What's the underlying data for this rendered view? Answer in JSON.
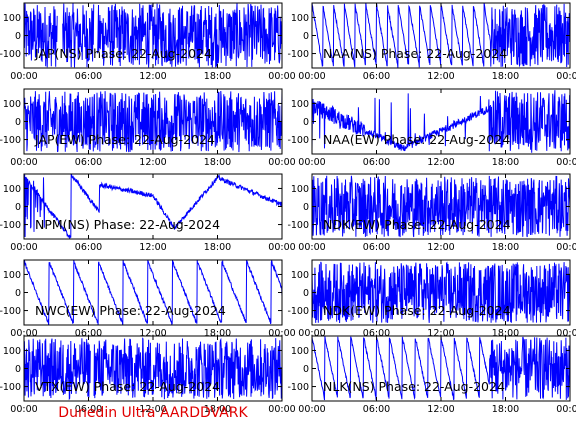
{
  "footer": "Dunedin Ultra AARDDVARK",
  "colors": {
    "trace": "#0000ff",
    "axis": "#000000",
    "background": "#ffffff",
    "footer": "#e00000"
  },
  "chart_data": [
    {
      "type": "line",
      "title": "JAP(NS) Phase: 22-Aug-2024",
      "xticks": [
        "00:00",
        "06:00",
        "12:00",
        "18:00",
        "00:00"
      ],
      "xlim": [
        0,
        24
      ],
      "ylim": [
        -180,
        180
      ],
      "yticks": [
        100,
        0,
        -100
      ],
      "trace": {
        "mode": "dense",
        "segments": [
          [
            0,
            3.1
          ],
          [
            3.6,
            6.5
          ],
          [
            6.8,
            24
          ]
        ]
      }
    },
    {
      "type": "line",
      "title": "NAA(NS) Phase: 22-Aug-2024",
      "xticks": [
        "00:00",
        "06:00",
        "12:00",
        "18:00",
        "00:00"
      ],
      "xlim": [
        0,
        24
      ],
      "ylim": [
        -180,
        180
      ],
      "yticks": [
        100,
        0,
        -100
      ],
      "trace": {
        "mode": "sawtooth",
        "period": 1.0,
        "dense_from": 16.6
      }
    },
    {
      "type": "line",
      "title": "JAP(EW) Phase: 22-Aug-2024",
      "xticks": [
        "00:00",
        "06:00",
        "12:00",
        "18:00",
        "00:00"
      ],
      "xlim": [
        0,
        24
      ],
      "ylim": [
        -180,
        180
      ],
      "yticks": [
        100,
        0,
        -100
      ],
      "trace": {
        "mode": "noisy",
        "segments": [
          [
            0,
            24
          ]
        ]
      }
    },
    {
      "type": "line",
      "title": "NAA(EW) Phase: 22-Aug-2024",
      "xticks": [
        "00:00",
        "06:00",
        "12:00",
        "18:00",
        "00:00"
      ],
      "xlim": [
        0,
        24
      ],
      "ylim": [
        -180,
        180
      ],
      "yticks": [
        100,
        0,
        -100
      ],
      "trace": {
        "mode": "vshape",
        "dense_from": 16.6
      }
    },
    {
      "type": "line",
      "title": "NPM(NS) Phase: 22-Aug-2024",
      "xticks": [
        "00:00",
        "06:00",
        "12:00",
        "18:00",
        "00:00"
      ],
      "xlim": [
        0,
        24
      ],
      "ylim": [
        -180,
        180
      ],
      "yticks": [
        100,
        0,
        -100
      ],
      "trace": {
        "mode": "drift"
      }
    },
    {
      "type": "line",
      "title": "NDK(EW) Phase: 22-Aug-2024",
      "xticks": [
        "00:00",
        "06:00",
        "12:00",
        "18:00",
        "00:00"
      ],
      "xlim": [
        0,
        24
      ],
      "ylim": [
        -180,
        180
      ],
      "yticks": [
        100,
        0,
        -100
      ],
      "trace": {
        "mode": "noisy",
        "segments": [
          [
            0,
            24
          ]
        ]
      }
    },
    {
      "type": "line",
      "title": "NWC(EW) Phase: 22-Aug-2024",
      "xticks": [
        "00:00",
        "06:00",
        "12:00",
        "18:00",
        "00:00"
      ],
      "xlim": [
        0,
        24
      ],
      "ylim": [
        -180,
        180
      ],
      "yticks": [
        100,
        0,
        -100
      ],
      "trace": {
        "mode": "sawtooth",
        "period": 2.3,
        "dense_from": 24
      }
    },
    {
      "type": "line",
      "title": "NDK(EW) Phase: 22-Aug-2024",
      "xticks": [
        "00:00",
        "06:00",
        "12:00",
        "18:00",
        "00:00"
      ],
      "xlim": [
        0,
        24
      ],
      "ylim": [
        -180,
        180
      ],
      "yticks": [
        100,
        0,
        -100
      ],
      "trace": {
        "mode": "noisy",
        "segments": [
          [
            0,
            24
          ]
        ]
      }
    },
    {
      "type": "line",
      "title": "VTX(EW) Phase: 22-Aug-2024",
      "xticks": [
        "00:00",
        "06:00",
        "12:00",
        "18:00",
        "00:00"
      ],
      "xlim": [
        0,
        24
      ],
      "ylim": [
        -180,
        180
      ],
      "yticks": [
        100,
        0,
        -100
      ],
      "trace": {
        "mode": "noisy",
        "segments": [
          [
            0,
            6.2
          ],
          [
            6.5,
            24
          ]
        ]
      }
    },
    {
      "type": "line",
      "title": "NLK(NS) Phase: 22-Aug-2024",
      "xticks": [
        "00:00",
        "06:00",
        "12:00",
        "18:00",
        "00:00"
      ],
      "xlim": [
        0,
        24
      ],
      "ylim": [
        -180,
        180
      ],
      "yticks": [
        100,
        0,
        -100
      ],
      "trace": {
        "mode": "sawtooth",
        "period": 1.2,
        "dense_from": 16.5
      }
    }
  ]
}
